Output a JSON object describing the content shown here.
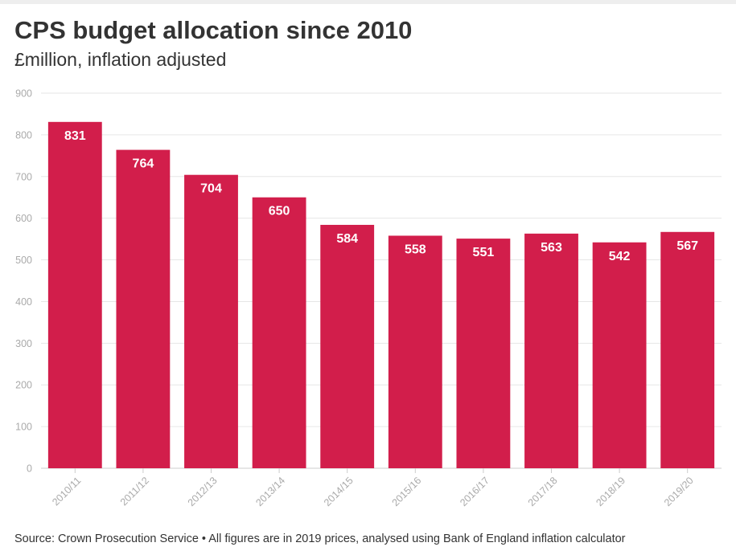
{
  "chart_data": {
    "type": "bar",
    "title": "CPS budget allocation since 2010",
    "subtitle": "£million, inflation adjusted",
    "categories": [
      "2010/11",
      "2011/12",
      "2012/13",
      "2013/14",
      "2014/15",
      "2015/16",
      "2016/17",
      "2017/18",
      "2018/19",
      "2019/20"
    ],
    "values": [
      831,
      764,
      704,
      650,
      584,
      558,
      551,
      563,
      542,
      567
    ],
    "data_labels": [
      "831",
      "764",
      "704",
      "650",
      "584",
      "558",
      "551",
      "563",
      "542",
      "567"
    ],
    "xlabel": "",
    "ylabel": "",
    "ylim": [
      0,
      900
    ],
    "yticks": [
      0,
      100,
      200,
      300,
      400,
      500,
      600,
      700,
      800,
      900
    ],
    "ytick_labels": [
      "0",
      "100",
      "200",
      "300",
      "400",
      "500",
      "600",
      "700",
      "800",
      "900"
    ],
    "grid": true,
    "bar_color": "#d21e4b",
    "label_color": "#ffffff",
    "source": "Source: Crown Prosecution Service • All figures are in 2019 prices, analysed using Bank of England inflation calculator"
  }
}
